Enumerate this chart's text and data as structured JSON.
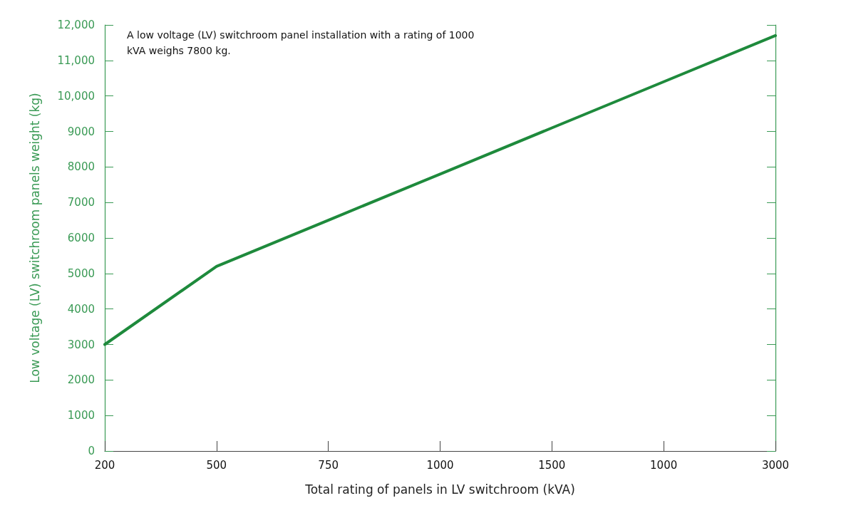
{
  "chart_data": {
    "type": "line",
    "xlabel": "Total rating of panels in LV switchroom (kVA)",
    "ylabel": "Low voltage (LV) switchroom panels weight (kg)",
    "annotations": [
      "A low voltage (LV) switchroom panel installation with a rating of 1000 kVA weighs 7800 kg."
    ],
    "categories": [
      "200",
      "500",
      "750",
      "1000",
      "1500",
      "1000",
      "3000"
    ],
    "series": [
      {
        "color": "#1e8a3c",
        "values": [
          3000,
          5200,
          6500,
          7800,
          9100,
          10400,
          11700
        ]
      }
    ],
    "ylim": [
      0,
      12000
    ],
    "yticks": [
      0,
      1000,
      2000,
      3000,
      4000,
      5000,
      6000,
      7000,
      8000,
      9000,
      {
        "value": 10000,
        "label": "10,000"
      },
      {
        "value": 11000,
        "label": "11,000"
      },
      {
        "value": 12000,
        "label": "12,000"
      }
    ],
    "grid": false,
    "marker": "none",
    "line_style": "solid"
  }
}
